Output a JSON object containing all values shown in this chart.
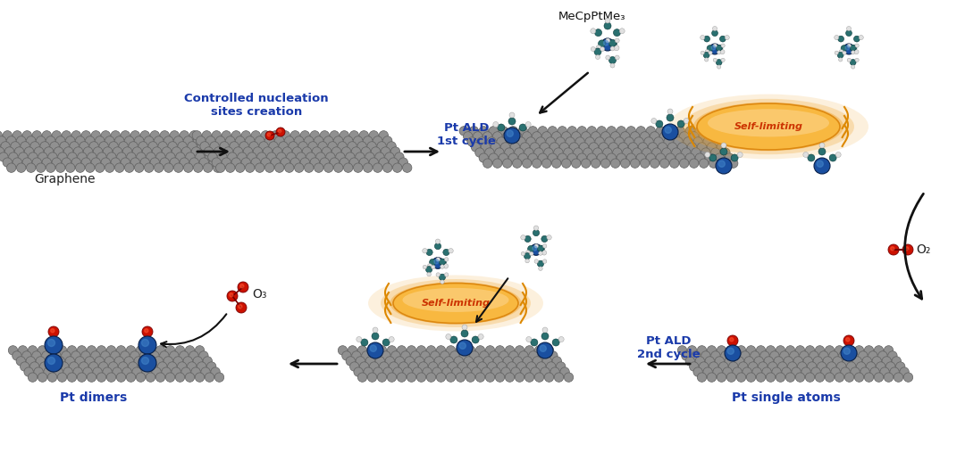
{
  "bg_color": "#ffffff",
  "fig_width": 10.8,
  "fig_height": 5.08,
  "dpi": 100,
  "graphene_color": "#909090",
  "graphene_edge_color": "#606060",
  "pt_color": "#1a4fa0",
  "o_color": "#cc1100",
  "teal_color": "#2a7070",
  "white_atom": "#e8e8e8",
  "self_limiting_fill": "#f5a020",
  "self_limiting_text": "#cc3300",
  "arrow_color": "#111111",
  "blue_text_color": "#1a3aaa",
  "label_graphene": "Graphene",
  "label_nucleation": "Controlled nucleation\nsites creation",
  "label_ptald1": "Pt ALD\n1st cycle",
  "label_mecpptme3": "MeCpPtMe₃",
  "label_self_limiting": "Self-limiting",
  "label_o2": "O₂",
  "label_o3": "O₃",
  "label_ptald2": "Pt ALD\n2nd cycle",
  "label_pt_single": "Pt single atoms",
  "label_pt_dimers": "Pt dimers"
}
